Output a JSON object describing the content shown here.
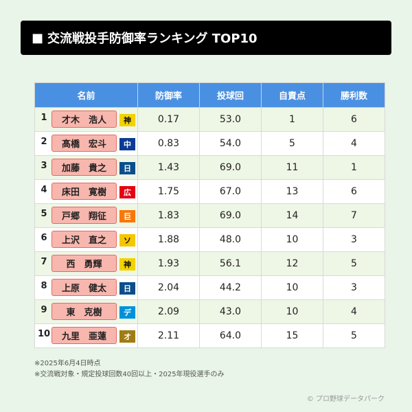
{
  "title": "交流戦投手防御率ランキング TOP10",
  "title_icon": "■",
  "columns": [
    "名前",
    "防御率",
    "投球回",
    "自責点",
    "勝利数"
  ],
  "rows": [
    {
      "rank": "1",
      "name": "才木　浩人",
      "team": "神",
      "team_bg": "#f3d200",
      "team_fg": "#111111",
      "era": "0.17",
      "ip": "53.0",
      "er": "1",
      "wins": "6"
    },
    {
      "rank": "2",
      "name": "髙橋　宏斗",
      "team": "中",
      "team_bg": "#0c3b96",
      "team_fg": "#ffffff",
      "era": "0.83",
      "ip": "54.0",
      "er": "5",
      "wins": "4"
    },
    {
      "rank": "3",
      "name": "加藤　貴之",
      "team": "日",
      "team_bg": "#0a4e8c",
      "team_fg": "#ffffff",
      "era": "1.43",
      "ip": "69.0",
      "er": "11",
      "wins": "1"
    },
    {
      "rank": "4",
      "name": "床田　寛樹",
      "team": "広",
      "team_bg": "#e60012",
      "team_fg": "#ffffff",
      "era": "1.75",
      "ip": "67.0",
      "er": "13",
      "wins": "6"
    },
    {
      "rank": "5",
      "name": "戸郷　翔征",
      "team": "巨",
      "team_bg": "#f97709",
      "team_fg": "#ffffff",
      "era": "1.83",
      "ip": "69.0",
      "er": "14",
      "wins": "7"
    },
    {
      "rank": "6",
      "name": "上沢　直之",
      "team": "ソ",
      "team_bg": "#f5c700",
      "team_fg": "#111111",
      "era": "1.88",
      "ip": "48.0",
      "er": "10",
      "wins": "3"
    },
    {
      "rank": "7",
      "name": "西　勇輝",
      "team": "神",
      "team_bg": "#f3d200",
      "team_fg": "#111111",
      "era": "1.93",
      "ip": "56.1",
      "er": "12",
      "wins": "5"
    },
    {
      "rank": "8",
      "name": "上原　健太",
      "team": "日",
      "team_bg": "#0a4e8c",
      "team_fg": "#ffffff",
      "era": "2.04",
      "ip": "44.2",
      "er": "10",
      "wins": "3"
    },
    {
      "rank": "9",
      "name": "東　克樹",
      "team": "デ",
      "team_bg": "#0091dc",
      "team_fg": "#ffffff",
      "era": "2.09",
      "ip": "43.0",
      "er": "10",
      "wins": "4"
    },
    {
      "rank": "10",
      "name": "九里　亜蓮",
      "team": "オ",
      "team_bg": "#a07c12",
      "team_fg": "#ffffff",
      "era": "2.11",
      "ip": "64.0",
      "er": "15",
      "wins": "5"
    }
  ],
  "notes": [
    "※2025年6月4日時点",
    "※交流戦対象・規定投球回数40回以上・2025年現役選手のみ"
  ],
  "credit": "© プロ野球データパーク",
  "colors": {
    "header_bg": "#4a90e2",
    "name_bg": "#f8b7ae",
    "row_alt": "#eef6e6",
    "page_bg": "#e8f5e8"
  }
}
